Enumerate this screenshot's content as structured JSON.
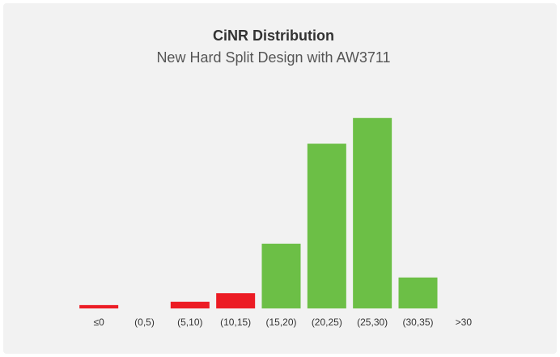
{
  "chart_data": {
    "type": "bar",
    "title": "CiNR Distribution",
    "subtitle": "New Hard Split Design with AW3711",
    "categories": [
      "≤0",
      "(0,5)",
      "(5,10)",
      "(10,15)",
      "(15,20)",
      "(20,25)",
      "(25,30)",
      "(30,35)",
      ">30"
    ],
    "values": [
      0.7,
      0,
      1.4,
      3.2,
      13.6,
      34.6,
      40,
      6.5,
      0
    ],
    "colors": [
      "#ec1c24",
      "#ec1c24",
      "#ec1c24",
      "#ec1c24",
      "#6cbf46",
      "#6cbf46",
      "#6cbf46",
      "#6cbf46",
      "#6cbf46"
    ],
    "ylim": [
      0,
      42
    ]
  }
}
